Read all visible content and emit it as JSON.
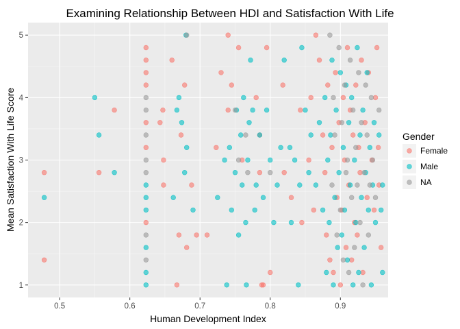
{
  "chart_data": {
    "type": "scatter",
    "title": "Examining Relationship Between HDI and Satisfaction With Life",
    "xlabel": "Human Development Index",
    "ylabel": "Mean Satisfaction With Life Score",
    "xlim": [
      0.455,
      0.968
    ],
    "ylim": [
      0.8,
      5.2
    ],
    "x_ticks": [
      0.5,
      0.6,
      0.7,
      0.8,
      0.9
    ],
    "x_tick_labels": [
      "0.5",
      "0.6",
      "0.7",
      "0.8",
      "0.9"
    ],
    "y_ticks": [
      1,
      2,
      3,
      4,
      5
    ],
    "y_tick_labels": [
      "1",
      "2",
      "3",
      "4",
      "5"
    ],
    "grid": true,
    "legend": {
      "title": "Gender",
      "position": "right"
    },
    "series": [
      {
        "name": "Female",
        "color": "#F8766D",
        "points": [
          [
            0.478,
            2.8
          ],
          [
            0.478,
            1.4
          ],
          [
            0.556,
            2.8
          ],
          [
            0.578,
            3.8
          ],
          [
            0.623,
            4.8
          ],
          [
            0.623,
            4.6
          ],
          [
            0.623,
            4.4
          ],
          [
            0.623,
            4.2
          ],
          [
            0.623,
            3.6
          ],
          [
            0.623,
            3.2
          ],
          [
            0.623,
            2.0
          ],
          [
            0.643,
            3.6
          ],
          [
            0.647,
            3.8
          ],
          [
            0.648,
            2.6
          ],
          [
            0.648,
            3.0
          ],
          [
            0.66,
            4.6
          ],
          [
            0.667,
            1.0
          ],
          [
            0.67,
            1.8
          ],
          [
            0.673,
            3.4
          ],
          [
            0.678,
            4.2
          ],
          [
            0.681,
            1.6
          ],
          [
            0.688,
            2.6
          ],
          [
            0.695,
            1.8
          ],
          [
            0.71,
            1.8
          ],
          [
            0.723,
            3.2
          ],
          [
            0.73,
            4.4
          ],
          [
            0.74,
            5.0
          ],
          [
            0.74,
            3.8
          ],
          [
            0.745,
            4.2
          ],
          [
            0.755,
            4.8
          ],
          [
            0.76,
            3.0
          ],
          [
            0.78,
            4.0
          ],
          [
            0.785,
            2.8
          ],
          [
            0.785,
            3.4
          ],
          [
            0.788,
            1.0
          ],
          [
            0.79,
            1.0
          ],
          [
            0.795,
            4.8
          ],
          [
            0.8,
            1.2
          ],
          [
            0.818,
            4.2
          ],
          [
            0.82,
            2.8
          ],
          [
            0.83,
            2.4
          ],
          [
            0.843,
            3.8
          ],
          [
            0.845,
            2.0
          ],
          [
            0.855,
            3.0
          ],
          [
            0.858,
            4.0
          ],
          [
            0.862,
            2.2
          ],
          [
            0.865,
            5.0
          ],
          [
            0.87,
            4.6
          ],
          [
            0.875,
            3.4
          ],
          [
            0.878,
            2.8
          ],
          [
            0.88,
            1.8
          ],
          [
            0.882,
            4.2
          ],
          [
            0.885,
            1.4
          ],
          [
            0.888,
            3.2
          ],
          [
            0.89,
            1.2
          ],
          [
            0.893,
            4.4
          ],
          [
            0.895,
            2.4
          ],
          [
            0.898,
            3.6
          ],
          [
            0.9,
            1.0
          ],
          [
            0.902,
            2.2
          ],
          [
            0.904,
            4.0
          ],
          [
            0.906,
            3.0
          ],
          [
            0.908,
            1.6
          ],
          [
            0.91,
            4.8
          ],
          [
            0.912,
            2.6
          ],
          [
            0.914,
            3.8
          ],
          [
            0.916,
            1.4
          ],
          [
            0.918,
            3.4
          ],
          [
            0.92,
            2.0
          ],
          [
            0.922,
            4.2
          ],
          [
            0.924,
            1.8
          ],
          [
            0.926,
            3.2
          ],
          [
            0.928,
            2.8
          ],
          [
            0.93,
            4.6
          ],
          [
            0.932,
            1.2
          ],
          [
            0.935,
            3.6
          ],
          [
            0.938,
            2.4
          ],
          [
            0.94,
            4.4
          ],
          [
            0.945,
            3.0
          ],
          [
            0.948,
            2.2
          ],
          [
            0.95,
            4.0
          ],
          [
            0.952,
            4.8
          ],
          [
            0.954,
            3.2
          ],
          [
            0.955,
            2.6
          ],
          [
            0.958,
            1.6
          ]
        ]
      },
      {
        "name": "Male",
        "color": "#00BFC4",
        "points": [
          [
            0.478,
            2.4
          ],
          [
            0.55,
            4.0
          ],
          [
            0.556,
            3.4
          ],
          [
            0.578,
            2.8
          ],
          [
            0.623,
            2.6
          ],
          [
            0.623,
            2.4
          ],
          [
            0.623,
            2.2
          ],
          [
            0.623,
            1.6
          ],
          [
            0.623,
            1.2
          ],
          [
            0.623,
            1.0
          ],
          [
            0.662,
            2.4
          ],
          [
            0.667,
            3.8
          ],
          [
            0.67,
            4.0
          ],
          [
            0.674,
            3.6
          ],
          [
            0.678,
            2.8
          ],
          [
            0.68,
            5.0
          ],
          [
            0.681,
            3.2
          ],
          [
            0.69,
            2.2
          ],
          [
            0.725,
            2.4
          ],
          [
            0.735,
            3.0
          ],
          [
            0.738,
            1.0
          ],
          [
            0.742,
            3.2
          ],
          [
            0.745,
            2.2
          ],
          [
            0.75,
            2.8
          ],
          [
            0.752,
            3.8
          ],
          [
            0.755,
            1.8
          ],
          [
            0.758,
            3.4
          ],
          [
            0.76,
            2.6
          ],
          [
            0.762,
            4.0
          ],
          [
            0.765,
            2.0
          ],
          [
            0.766,
            1.0
          ],
          [
            0.768,
            3.0
          ],
          [
            0.77,
            3.6
          ],
          [
            0.772,
            4.6
          ],
          [
            0.775,
            3.8
          ],
          [
            0.778,
            2.2
          ],
          [
            0.78,
            2.6
          ],
          [
            0.785,
            3.4
          ],
          [
            0.79,
            2.4
          ],
          [
            0.795,
            3.8
          ],
          [
            0.8,
            3.0
          ],
          [
            0.805,
            2.0
          ],
          [
            0.81,
            2.6
          ],
          [
            0.815,
            3.2
          ],
          [
            0.82,
            4.6
          ],
          [
            0.828,
            3.2
          ],
          [
            0.83,
            2.0
          ],
          [
            0.835,
            3.0
          ],
          [
            0.84,
            1.0
          ],
          [
            0.842,
            2.6
          ],
          [
            0.845,
            4.8
          ],
          [
            0.85,
            3.8
          ],
          [
            0.855,
            2.8
          ],
          [
            0.858,
            3.4
          ],
          [
            0.865,
            2.6
          ],
          [
            0.87,
            3.6
          ],
          [
            0.875,
            2.2
          ],
          [
            0.878,
            4.0
          ],
          [
            0.88,
            1.2
          ],
          [
            0.882,
            3.0
          ],
          [
            0.884,
            2.0
          ],
          [
            0.886,
            3.4
          ],
          [
            0.888,
            4.6
          ],
          [
            0.89,
            1.0
          ],
          [
            0.892,
            2.4
          ],
          [
            0.894,
            3.8
          ],
          [
            0.896,
            1.6
          ],
          [
            0.898,
            2.8
          ],
          [
            0.9,
            4.4
          ],
          [
            0.902,
            1.8
          ],
          [
            0.904,
            3.2
          ],
          [
            0.906,
            2.2
          ],
          [
            0.908,
            4.2
          ],
          [
            0.91,
            1.4
          ],
          [
            0.912,
            3.6
          ],
          [
            0.914,
            2.6
          ],
          [
            0.916,
            4.0
          ],
          [
            0.918,
            1.0
          ],
          [
            0.92,
            3.0
          ],
          [
            0.922,
            2.0
          ],
          [
            0.924,
            4.8
          ],
          [
            0.926,
            1.2
          ],
          [
            0.928,
            3.4
          ],
          [
            0.93,
            2.4
          ],
          [
            0.932,
            3.8
          ],
          [
            0.934,
            1.6
          ],
          [
            0.936,
            2.8
          ],
          [
            0.938,
            4.4
          ],
          [
            0.94,
            2.2
          ],
          [
            0.942,
            3.2
          ],
          [
            0.944,
            1.0
          ],
          [
            0.946,
            2.6
          ],
          [
            0.948,
            3.6
          ],
          [
            0.95,
            2.0
          ],
          [
            0.955,
            3.4
          ],
          [
            0.958,
            2.2
          ],
          [
            0.96,
            2.6
          ],
          [
            0.96,
            1.2
          ]
        ]
      },
      {
        "name": "NA",
        "color": "#999999",
        "points": [
          [
            0.623,
            4.0
          ],
          [
            0.623,
            3.8
          ],
          [
            0.623,
            3.4
          ],
          [
            0.623,
            3.0
          ],
          [
            0.623,
            2.8
          ],
          [
            0.623,
            1.8
          ],
          [
            0.623,
            1.4
          ],
          [
            0.681,
            5.0
          ],
          [
            0.75,
            3.8
          ],
          [
            0.755,
            3.0
          ],
          [
            0.765,
            3.4
          ],
          [
            0.768,
            2.8
          ],
          [
            0.8,
            2.8
          ],
          [
            0.885,
            5.0
          ],
          [
            0.888,
            2.6
          ],
          [
            0.89,
            4.0
          ],
          [
            0.892,
            3.4
          ],
          [
            0.895,
            1.8
          ],
          [
            0.898,
            4.8
          ],
          [
            0.9,
            2.2
          ],
          [
            0.902,
            3.6
          ],
          [
            0.904,
            1.4
          ],
          [
            0.906,
            4.2
          ],
          [
            0.908,
            2.8
          ],
          [
            0.91,
            3.0
          ],
          [
            0.912,
            1.2
          ],
          [
            0.914,
            4.6
          ],
          [
            0.916,
            2.4
          ],
          [
            0.918,
            3.8
          ],
          [
            0.92,
            1.6
          ],
          [
            0.922,
            3.2
          ],
          [
            0.924,
            2.6
          ],
          [
            0.926,
            4.4
          ],
          [
            0.928,
            2.0
          ],
          [
            0.93,
            3.6
          ],
          [
            0.932,
            1.0
          ],
          [
            0.934,
            2.8
          ],
          [
            0.936,
            4.2
          ],
          [
            0.938,
            3.4
          ],
          [
            0.94,
            1.8
          ],
          [
            0.942,
            2.6
          ],
          [
            0.944,
            4.0
          ],
          [
            0.946,
            3.0
          ],
          [
            0.95,
            2.4
          ],
          [
            0.955,
            3.8
          ]
        ]
      }
    ]
  }
}
